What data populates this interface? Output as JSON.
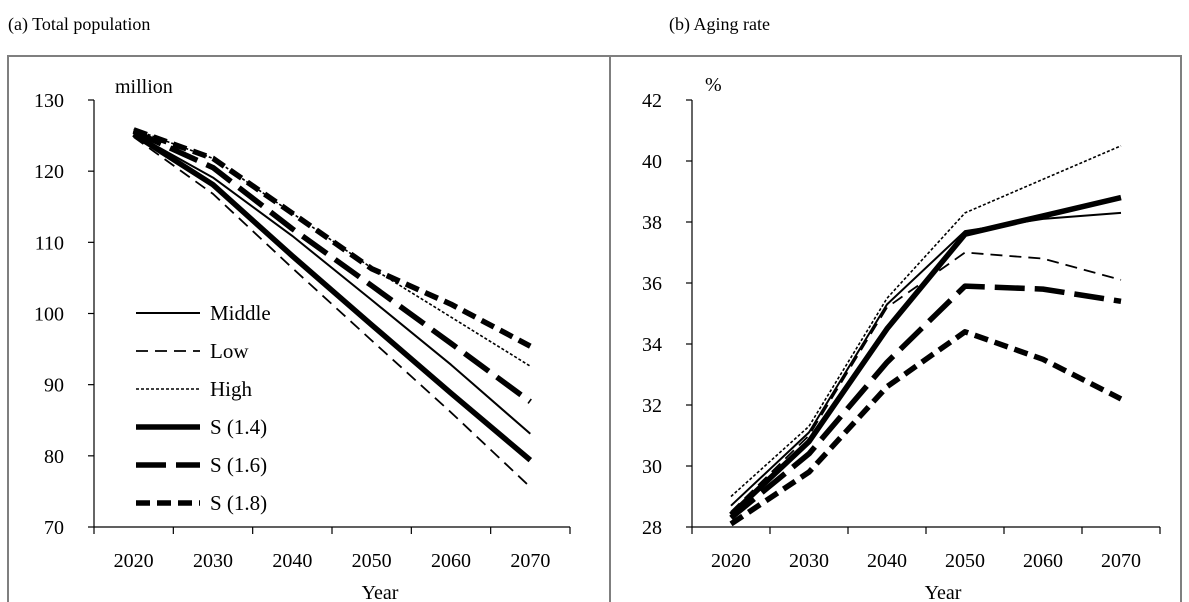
{
  "chart_data": [
    {
      "panel_title": "(a) Total population",
      "type": "line",
      "unit_label": "million",
      "xlabel": "Year",
      "x": [
        2020,
        2030,
        2040,
        2050,
        2060,
        2070
      ],
      "xlim": [
        2015,
        2075
      ],
      "ylim": [
        70,
        130
      ],
      "yticks": [
        70,
        80,
        90,
        100,
        110,
        120,
        130
      ],
      "legend_position": "left",
      "series": [
        {
          "name": "Middle",
          "style": "solid-thin",
          "values": [
            125.3,
            119.1,
            110.9,
            101.9,
            92.8,
            83.1
          ]
        },
        {
          "name": "Low",
          "style": "dash-thin",
          "values": [
            124.8,
            116.8,
            106.4,
            96.2,
            86.1,
            75.6
          ]
        },
        {
          "name": "High",
          "style": "dot-thin",
          "values": [
            125.9,
            121.8,
            114.1,
            106.4,
            99.5,
            92.6
          ]
        },
        {
          "name": "S (1.4)",
          "style": "solid-thick",
          "values": [
            125.2,
            118.1,
            108.1,
            98.4,
            88.8,
            79.4
          ]
        },
        {
          "name": "S (1.6)",
          "style": "dash-thick",
          "values": [
            125.6,
            120.5,
            111.9,
            103.9,
            95.8,
            87.6
          ]
        },
        {
          "name": "S (1.8)",
          "style": "dash-thicker",
          "values": [
            125.8,
            121.8,
            114.1,
            106.3,
            101.3,
            95.4
          ]
        }
      ]
    },
    {
      "panel_title": "(b) Aging rate",
      "type": "line",
      "unit_label": "%",
      "xlabel": "Year",
      "x": [
        2020,
        2030,
        2040,
        2050,
        2060,
        2070
      ],
      "xlim": [
        2015,
        2075
      ],
      "ylim": [
        28,
        42
      ],
      "yticks": [
        28,
        30,
        32,
        34,
        36,
        38,
        40,
        42
      ],
      "series": [
        {
          "name": "Middle",
          "style": "solid-thin",
          "values": [
            28.7,
            31.1,
            35.3,
            37.7,
            38.1,
            38.3
          ]
        },
        {
          "name": "Low",
          "style": "dash-thin",
          "values": [
            28.5,
            31.0,
            35.2,
            37.0,
            36.8,
            36.1
          ]
        },
        {
          "name": "High",
          "style": "dot-thin",
          "values": [
            29.0,
            31.3,
            35.5,
            38.3,
            39.4,
            40.5
          ]
        },
        {
          "name": "S (1.4)",
          "style": "solid-thick",
          "values": [
            28.4,
            30.8,
            34.5,
            37.6,
            38.2,
            38.8
          ]
        },
        {
          "name": "S (1.6)",
          "style": "dash-thick",
          "values": [
            28.3,
            30.4,
            33.4,
            35.9,
            35.8,
            35.4
          ]
        },
        {
          "name": "S (1.8)",
          "style": "dash-thicker",
          "values": [
            28.1,
            29.8,
            32.6,
            34.4,
            33.5,
            32.2
          ]
        }
      ]
    }
  ]
}
